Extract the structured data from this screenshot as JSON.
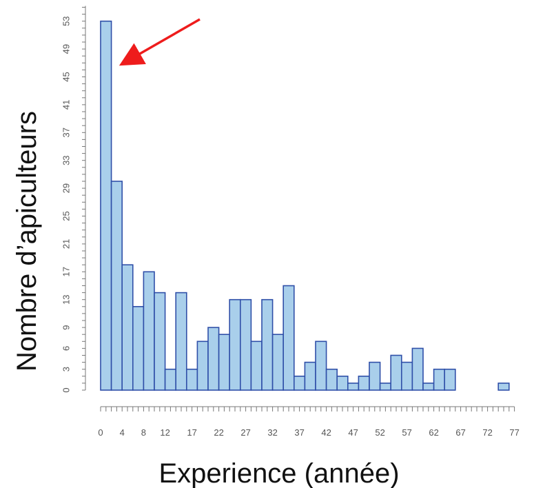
{
  "chart_data": {
    "type": "bar",
    "xlabel": "Experience (année)",
    "ylabel": "Nombre d’apiculteurs",
    "bin_width": 2,
    "x_range": [
      0,
      77
    ],
    "ylim": [
      0,
      55
    ],
    "bar_color": "#a9cfeb",
    "bar_edge_color": "#2f4fa8",
    "annotation_arrow_color": "#ee1c1c",
    "x_tick_labels": [
      "0",
      "4",
      "8",
      "12",
      "17",
      "22",
      "27",
      "32",
      "37",
      "42",
      "47",
      "52",
      "57",
      "62",
      "67",
      "72",
      "77"
    ],
    "y_tick_labels": [
      "0",
      "3",
      "6",
      "9",
      "13",
      "17",
      "21",
      "25",
      "29",
      "33",
      "37",
      "41",
      "45",
      "49",
      "53"
    ],
    "bins": [
      {
        "x0": 0,
        "x1": 2,
        "value": 53
      },
      {
        "x0": 2,
        "x1": 4,
        "value": 30
      },
      {
        "x0": 4,
        "x1": 6,
        "value": 18
      },
      {
        "x0": 6,
        "x1": 8,
        "value": 12
      },
      {
        "x0": 8,
        "x1": 10,
        "value": 17
      },
      {
        "x0": 10,
        "x1": 12,
        "value": 14
      },
      {
        "x0": 12,
        "x1": 14,
        "value": 3
      },
      {
        "x0": 14,
        "x1": 16,
        "value": 14
      },
      {
        "x0": 16,
        "x1": 18,
        "value": 3
      },
      {
        "x0": 18,
        "x1": 20,
        "value": 7
      },
      {
        "x0": 20,
        "x1": 22,
        "value": 9
      },
      {
        "x0": 22,
        "x1": 24,
        "value": 8
      },
      {
        "x0": 24,
        "x1": 26,
        "value": 13
      },
      {
        "x0": 26,
        "x1": 28,
        "value": 13
      },
      {
        "x0": 28,
        "x1": 30,
        "value": 7
      },
      {
        "x0": 30,
        "x1": 32,
        "value": 13
      },
      {
        "x0": 32,
        "x1": 34,
        "value": 8
      },
      {
        "x0": 34,
        "x1": 36,
        "value": 15
      },
      {
        "x0": 36,
        "x1": 38,
        "value": 2
      },
      {
        "x0": 38,
        "x1": 40,
        "value": 4
      },
      {
        "x0": 40,
        "x1": 42,
        "value": 7
      },
      {
        "x0": 42,
        "x1": 44,
        "value": 3
      },
      {
        "x0": 44,
        "x1": 46,
        "value": 2
      },
      {
        "x0": 46,
        "x1": 48,
        "value": 1
      },
      {
        "x0": 48,
        "x1": 50,
        "value": 2
      },
      {
        "x0": 50,
        "x1": 52,
        "value": 4
      },
      {
        "x0": 52,
        "x1": 54,
        "value": 1
      },
      {
        "x0": 54,
        "x1": 56,
        "value": 5
      },
      {
        "x0": 56,
        "x1": 58,
        "value": 4
      },
      {
        "x0": 58,
        "x1": 60,
        "value": 6
      },
      {
        "x0": 60,
        "x1": 62,
        "value": 1
      },
      {
        "x0": 62,
        "x1": 64,
        "value": 3
      },
      {
        "x0": 64,
        "x1": 66,
        "value": 3
      },
      {
        "x0": 66,
        "x1": 68,
        "value": 0
      },
      {
        "x0": 68,
        "x1": 70,
        "value": 0
      },
      {
        "x0": 70,
        "x1": 72,
        "value": 0
      },
      {
        "x0": 72,
        "x1": 74,
        "value": 0
      },
      {
        "x0": 74,
        "x1": 76,
        "value": 1
      }
    ]
  }
}
